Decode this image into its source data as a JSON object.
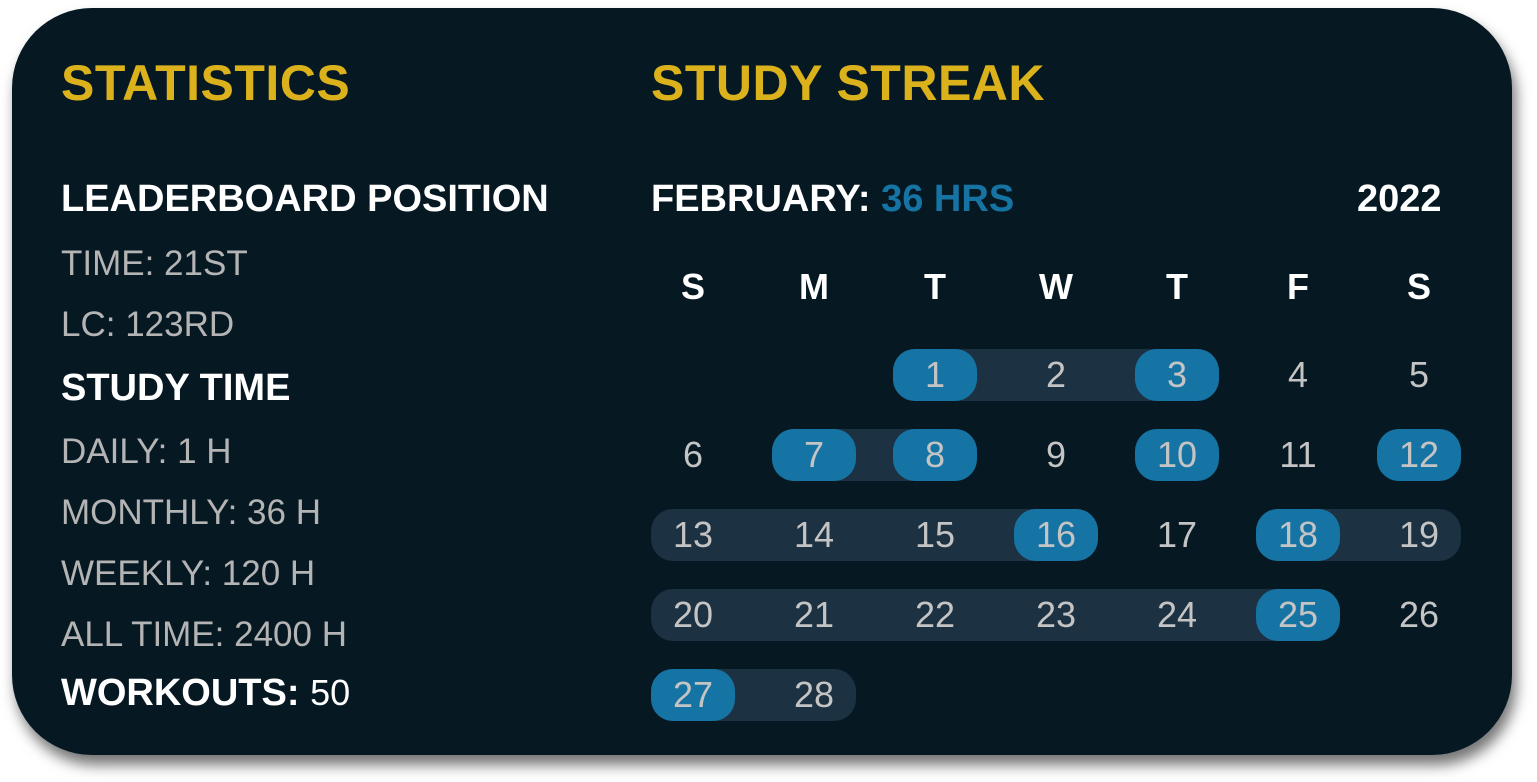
{
  "statistics": {
    "title": "STATISTICS",
    "leaderboard_heading": "LEADERBOARD POSITION",
    "time_rank": "TIME: 21ST",
    "lc_rank": "LC: 123RD",
    "study_time_heading": "STUDY TIME",
    "daily": "DAILY: 1 H",
    "monthly": "MONTHLY: 36 H",
    "weekly": "WEEKLY: 120 H",
    "all_time": "ALL TIME: 2400 H",
    "workouts_label": "WORKOUTS:",
    "workouts_value": "50"
  },
  "streak": {
    "title": "STUDY STREAK",
    "month_label": "FEBRUARY:",
    "month_hours": "36 HRS",
    "year": "2022",
    "weekdays": [
      "S",
      "M",
      "T",
      "W",
      "T",
      "F",
      "S"
    ],
    "first_weekday_index": 2,
    "days_in_month": 28,
    "streak_ranges": [
      [
        1,
        3
      ],
      [
        7,
        8
      ],
      [
        10,
        10
      ],
      [
        12,
        12
      ],
      [
        13,
        16
      ],
      [
        18,
        19
      ],
      [
        20,
        25
      ],
      [
        27,
        28
      ]
    ],
    "highlighted_days": [
      1,
      3,
      7,
      8,
      10,
      12,
      16,
      18,
      25,
      27
    ],
    "colors": {
      "title": "#dcb21c",
      "highlight": "#1674a4",
      "band": "#1c3142",
      "background": "#061923"
    }
  }
}
